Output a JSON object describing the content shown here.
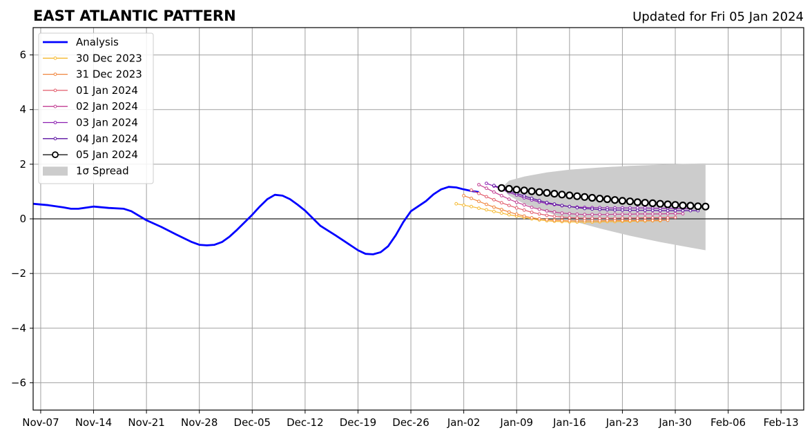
{
  "chart_data": {
    "type": "line",
    "title": "EAST ATLANTIC PATTERN",
    "subtitle": "Updated for Fri 05 Jan 2024",
    "xlabel": "",
    "ylabel": "",
    "x_axis": {
      "start": "2023-11-06",
      "end": "2024-02-16",
      "ticks": [
        "Nov-07",
        "Nov-14",
        "Nov-21",
        "Nov-28",
        "Dec-05",
        "Dec-12",
        "Dec-19",
        "Dec-26",
        "Jan-02",
        "Jan-09",
        "Jan-16",
        "Jan-23",
        "Jan-30",
        "Feb-06",
        "Feb-13"
      ],
      "tick_dates": [
        "2023-11-07",
        "2023-11-14",
        "2023-11-21",
        "2023-11-28",
        "2023-12-05",
        "2023-12-12",
        "2023-12-19",
        "2023-12-26",
        "2024-01-02",
        "2024-01-09",
        "2024-01-16",
        "2024-01-23",
        "2024-01-30",
        "2024-02-06",
        "2024-02-13"
      ]
    },
    "y_axis": {
      "ylim": [
        -7,
        7
      ],
      "ticks": [
        6,
        4,
        2,
        0,
        -2,
        -4,
        -6
      ],
      "tick_labels": [
        "6",
        "4",
        "2",
        "0",
        "−2",
        "−4",
        "−6"
      ]
    },
    "grid": true,
    "legend_position": "top-left",
    "legend": [
      "Analysis",
      "30 Dec 2023",
      "31 Dec 2023",
      "01 Jan 2024",
      "02 Jan 2024",
      "03 Jan 2024",
      "04 Jan 2024",
      "05 Jan 2024",
      "1σ Spread"
    ],
    "analysis": {
      "name": "Analysis",
      "color": "#0000ff",
      "x": [
        "2023-11-06",
        "2023-11-08",
        "2023-11-10",
        "2023-11-11",
        "2023-11-12",
        "2023-11-14",
        "2023-11-16",
        "2023-11-18",
        "2023-11-19",
        "2023-11-21",
        "2023-11-23",
        "2023-11-25",
        "2023-11-27",
        "2023-11-28",
        "2023-11-29",
        "2023-11-30",
        "2023-12-01",
        "2023-12-02",
        "2023-12-03",
        "2023-12-05",
        "2023-12-06",
        "2023-12-07",
        "2023-12-08",
        "2023-12-09",
        "2023-12-10",
        "2023-12-11",
        "2023-12-12",
        "2023-12-14",
        "2023-12-16",
        "2023-12-17",
        "2023-12-19",
        "2023-12-20",
        "2023-12-21",
        "2023-12-22",
        "2023-12-23",
        "2023-12-24",
        "2023-12-25",
        "2023-12-26",
        "2023-12-28",
        "2023-12-29",
        "2023-12-30",
        "2023-12-31",
        "2024-01-01",
        "2024-01-02",
        "2024-01-03",
        "2024-01-04"
      ],
      "y": [
        0.55,
        0.5,
        0.42,
        0.37,
        0.37,
        0.45,
        0.4,
        0.37,
        0.28,
        -0.05,
        -0.3,
        -0.58,
        -0.85,
        -0.95,
        -0.97,
        -0.95,
        -0.85,
        -0.65,
        -0.4,
        0.15,
        0.45,
        0.72,
        0.88,
        0.85,
        0.72,
        0.52,
        0.3,
        -0.25,
        -0.6,
        -0.78,
        -1.15,
        -1.28,
        -1.3,
        -1.22,
        -1.0,
        -0.6,
        -0.12,
        0.28,
        0.65,
        0.9,
        1.08,
        1.17,
        1.15,
        1.08,
        1.02,
        0.98
      ]
    },
    "forecasts": [
      {
        "name": "30 Dec 2023",
        "color": "#f5b82e",
        "start": "2024-01-01",
        "y": [
          0.55,
          0.5,
          0.45,
          0.39,
          0.33,
          0.27,
          0.21,
          0.15,
          0.1,
          0.05,
          0.0,
          -0.04,
          -0.07,
          -0.09,
          -0.1,
          -0.11,
          -0.12,
          -0.12,
          -0.12,
          -0.11,
          -0.1,
          -0.1,
          -0.09,
          -0.09,
          -0.08,
          -0.08,
          -0.07,
          -0.07
        ]
      },
      {
        "name": "31 Dec 2023",
        "color": "#f0843c",
        "start": "2024-01-02",
        "y": [
          0.85,
          0.75,
          0.64,
          0.53,
          0.43,
          0.34,
          0.25,
          0.17,
          0.1,
          0.04,
          0.0,
          -0.03,
          -0.05,
          -0.06,
          -0.07,
          -0.07,
          -0.07,
          -0.07,
          -0.07,
          -0.06,
          -0.06,
          -0.06,
          -0.06,
          -0.06,
          -0.06,
          -0.06,
          -0.05,
          -0.05
        ]
      },
      {
        "name": "01 Jan 2024",
        "color": "#e25a6a",
        "start": "2024-01-03",
        "y": [
          1.05,
          0.93,
          0.81,
          0.7,
          0.59,
          0.49,
          0.4,
          0.32,
          0.24,
          0.18,
          0.13,
          0.09,
          0.06,
          0.04,
          0.03,
          0.02,
          0.02,
          0.02,
          0.02,
          0.02,
          0.03,
          0.03,
          0.03,
          0.04,
          0.04,
          0.04,
          0.04,
          0.05
        ]
      },
      {
        "name": "02 Jan 2024",
        "color": "#c23c92",
        "start": "2024-01-04",
        "y": [
          1.25,
          1.12,
          0.98,
          0.85,
          0.72,
          0.61,
          0.51,
          0.42,
          0.35,
          0.29,
          0.25,
          0.21,
          0.19,
          0.17,
          0.16,
          0.16,
          0.16,
          0.16,
          0.17,
          0.17,
          0.17,
          0.18,
          0.18,
          0.18,
          0.18,
          0.19,
          0.19,
          0.19
        ]
      },
      {
        "name": "03 Jan 2024",
        "color": "#8a1cb0",
        "start": "2024-01-05",
        "y": [
          1.3,
          1.2,
          1.08,
          0.97,
          0.87,
          0.77,
          0.69,
          0.62,
          0.56,
          0.52,
          0.48,
          0.45,
          0.43,
          0.42,
          0.41,
          0.41,
          0.4,
          0.4,
          0.4,
          0.4,
          0.4,
          0.4,
          0.39,
          0.39,
          0.39,
          0.38,
          0.38,
          0.37
        ]
      },
      {
        "name": "04 Jan 2024",
        "color": "#5a0fa0",
        "start": "2024-01-06",
        "y": [
          1.22,
          1.12,
          1.02,
          0.93,
          0.84,
          0.75,
          0.67,
          0.6,
          0.54,
          0.49,
          0.45,
          0.41,
          0.38,
          0.36,
          0.34,
          0.33,
          0.32,
          0.32,
          0.31,
          0.31,
          0.31,
          0.31,
          0.3,
          0.3,
          0.3,
          0.3,
          0.3,
          0.3
        ]
      },
      {
        "name": "05 Jan 2024",
        "color": "#000000",
        "start": "2024-01-07",
        "y": [
          1.13,
          1.1,
          1.07,
          1.04,
          1.01,
          0.98,
          0.95,
          0.92,
          0.89,
          0.86,
          0.83,
          0.8,
          0.77,
          0.74,
          0.72,
          0.69,
          0.66,
          0.64,
          0.61,
          0.59,
          0.57,
          0.55,
          0.53,
          0.51,
          0.49,
          0.48,
          0.46,
          0.45
        ]
      }
    ],
    "spread": {
      "name": "1σ Spread",
      "color": "#cccccc",
      "x": [
        "2024-01-07",
        "2024-01-08",
        "2024-01-10",
        "2024-01-13",
        "2024-01-16",
        "2024-01-20",
        "2024-01-24",
        "2024-01-28",
        "2024-02-01",
        "2024-02-03"
      ],
      "upper": [
        1.13,
        1.4,
        1.55,
        1.7,
        1.8,
        1.88,
        1.94,
        1.98,
        2.02,
        2.03
      ],
      "lower": [
        1.13,
        0.85,
        0.55,
        0.25,
        -0.05,
        -0.35,
        -0.62,
        -0.85,
        -1.05,
        -1.15
      ]
    }
  }
}
